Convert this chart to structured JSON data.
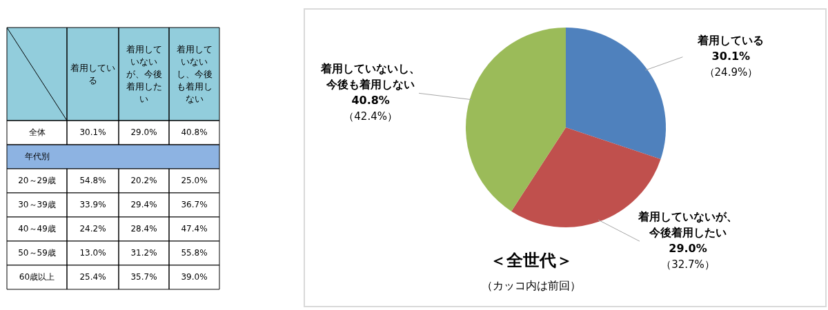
{
  "chart_data": [
    {
      "type": "heatmap",
      "categories": [
        "着用している",
        "着用していないが、今後着用したい",
        "着用していないし、今後も着用しない"
      ],
      "y_categories": [
        "全体",
        "年代別",
        "20～29歳",
        "30～39歳",
        "40～49歳",
        "50～59歳",
        "60歳以上"
      ],
      "cells": [
        [
          30.1,
          29.0,
          40.8
        ],
        [
          null,
          null,
          null
        ],
        [
          54.8,
          20.2,
          25.0
        ],
        [
          33.9,
          29.4,
          36.7
        ],
        [
          24.2,
          28.4,
          47.4
        ],
        [
          13.0,
          31.2,
          55.8
        ],
        [
          25.4,
          35.7,
          39.0
        ]
      ],
      "cell_labels": [
        [
          "30.1%",
          "29.0%",
          "40.8%"
        ],
        [
          null,
          null,
          null
        ],
        [
          "54.8%",
          "20.2%",
          "25.0%"
        ],
        [
          "33.9%",
          "29.4%",
          "36.7%"
        ],
        [
          "24.2%",
          "28.4%",
          "47.4%"
        ],
        [
          "13.0%",
          "31.2%",
          "55.8%"
        ],
        [
          "25.4%",
          "35.7%",
          "39.0%"
        ]
      ]
    },
    {
      "type": "pie",
      "categories": [
        "着用している",
        "着用していないが、今後着用したい",
        "着用していないし、今後も着用しない"
      ],
      "values": [
        30.1,
        29.0,
        40.8
      ],
      "colors": [
        "#4f81bd",
        "#c0504d",
        "#9bbb59"
      ],
      "value_labels": [
        "30.1%\n（24.9%）",
        "29.0%\n（32.7%）",
        "40.8%\n（42.4%）"
      ],
      "legend": false,
      "annotations": [
        "＜全世代＞",
        "（カッコ内は前回）"
      ]
    }
  ]
}
